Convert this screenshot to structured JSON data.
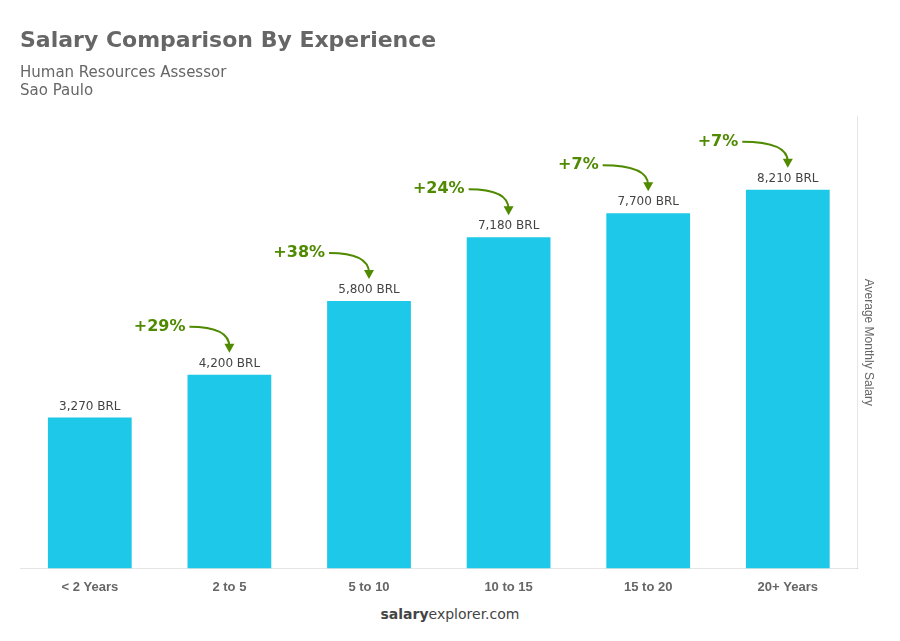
{
  "chart_data": {
    "type": "bar",
    "title": "Salary Comparison By Experience",
    "subtitle": [
      "Human Resources Assessor",
      "Sao Paulo"
    ],
    "categories": [
      "< 2 Years",
      "2 to 5",
      "5 to 10",
      "10 to 15",
      "15 to 20",
      "20+ Years"
    ],
    "values": [
      3270,
      4200,
      5800,
      7180,
      7700,
      8210
    ],
    "value_labels": [
      "3,270 BRL",
      "4,200 BRL",
      "5,800 BRL",
      "7,180 BRL",
      "7,700 BRL",
      "8,210 BRL"
    ],
    "data_labels": true,
    "annotations": [
      "+29%",
      "+38%",
      "+24%",
      "+7%",
      "+7%"
    ],
    "ylabel": "Average Monthly Salary",
    "footer": [
      "salary",
      "explorer.com"
    ],
    "color": "#1EC8E8",
    "ylim": [
      0,
      9800
    ],
    "tick_labels": "x",
    "grid": false
  }
}
